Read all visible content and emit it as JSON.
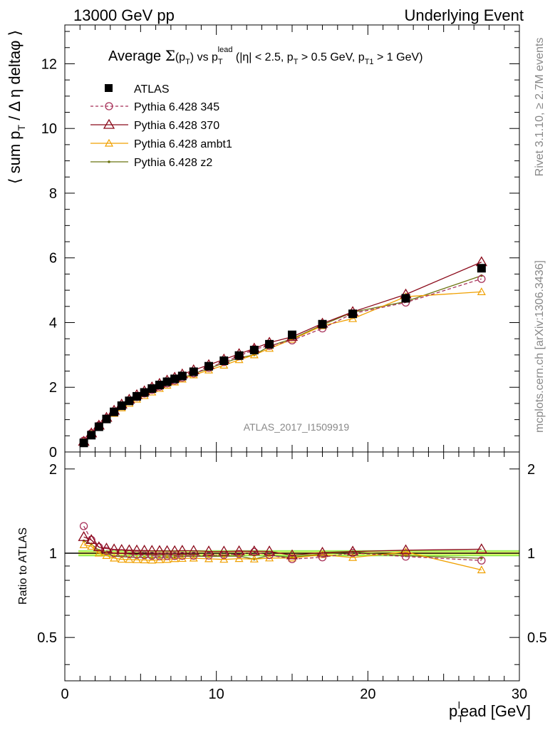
{
  "header": {
    "left": "13000 GeV pp",
    "right": "Underlying Event"
  },
  "side": {
    "rivet": "Rivet 3.1.10, ≥ 2.7M events",
    "mcplots": "mcplots.cern.ch [arXiv:1306.3436]"
  },
  "watermark": "ATLAS_2017_I1509919",
  "colors": {
    "atlas": "#000000",
    "p345": "#a8325a",
    "p370": "#8b0a1a",
    "ambt1": "#f0a000",
    "z2": "#6b7310",
    "band_inner": "#ffff77",
    "band_outer": "#99ee55"
  },
  "chart_data": {
    "type": "line",
    "title": "Average Σ(p_T) vs p_T^lead (|η| < 2.5, p_T > 0.5 GeV, p_T1 > 1 GeV)",
    "title_parts": {
      "a": "Average ",
      "sigma": "Σ",
      "b": "(p",
      "c": "T",
      "d": ") vs p",
      "e": "T",
      "e_sup": "lead",
      "f": " (|η| < 2.5, p",
      "g": "T",
      "h": " > 0.5 GeV, p",
      "i": "T1",
      "j": " > 1 GeV)"
    },
    "ylabel": "⟨ sum p_T / Δη deltaφ ⟩",
    "ylabel_parts": {
      "a": "⟨ sum p",
      "b": "T",
      "c": " / Δ η deltaφ ⟩"
    },
    "ratio_ylabel": "Ratio to ATLAS",
    "xlabel": "p_T^lead [GeV]",
    "xlabel_parts": {
      "a": "p",
      "b": "T",
      "sup": "l",
      "c": "ead [GeV]"
    },
    "xlim": [
      0,
      30
    ],
    "ylim": [
      0,
      13.2
    ],
    "ratio_ylim": [
      0.35,
      2.3
    ],
    "x_ticks": [
      "0",
      "10",
      "20",
      "30"
    ],
    "y_ticks": [
      "0",
      "2",
      "4",
      "6",
      "8",
      "10",
      "12"
    ],
    "ratio_ticks": [
      "0.5",
      "1",
      "2"
    ],
    "legend_position": "top-left",
    "x": [
      1.25,
      1.75,
      2.25,
      2.75,
      3.25,
      3.75,
      4.25,
      4.75,
      5.25,
      5.75,
      6.25,
      6.75,
      7.25,
      7.75,
      8.5,
      9.5,
      10.5,
      11.5,
      12.5,
      13.5,
      15.0,
      17.0,
      19.0,
      22.5,
      27.5
    ],
    "series": [
      {
        "key": "atlas",
        "name": "ATLAS",
        "marker": "square",
        "values": [
          0.28,
          0.52,
          0.78,
          1.02,
          1.24,
          1.43,
          1.58,
          1.72,
          1.84,
          1.96,
          2.07,
          2.17,
          2.26,
          2.35,
          2.48,
          2.65,
          2.82,
          2.98,
          3.15,
          3.33,
          3.62,
          3.95,
          4.27,
          4.75,
          5.68
        ]
      },
      {
        "key": "p345",
        "name": "Pythia 6.428 345",
        "marker": "circle",
        "dashed": true,
        "values": [
          0.35,
          0.58,
          0.82,
          1.04,
          1.24,
          1.43,
          1.57,
          1.7,
          1.81,
          1.92,
          2.02,
          2.12,
          2.21,
          2.3,
          2.43,
          2.6,
          2.78,
          2.96,
          3.18,
          3.28,
          3.45,
          3.82,
          4.28,
          4.62,
          5.35
        ]
      },
      {
        "key": "p370",
        "name": "Pythia 6.428 370",
        "marker": "triangle",
        "values": [
          0.32,
          0.58,
          0.82,
          1.06,
          1.28,
          1.47,
          1.62,
          1.76,
          1.88,
          2.0,
          2.11,
          2.21,
          2.3,
          2.4,
          2.53,
          2.69,
          2.86,
          3.03,
          3.2,
          3.38,
          3.56,
          3.97,
          4.33,
          4.87,
          5.87
        ]
      },
      {
        "key": "ambt1",
        "name": "Pythia 6.428 ambt1",
        "marker": "triangle-small",
        "values": [
          0.3,
          0.55,
          0.78,
          1.0,
          1.19,
          1.36,
          1.5,
          1.63,
          1.74,
          1.85,
          1.96,
          2.06,
          2.16,
          2.25,
          2.38,
          2.53,
          2.68,
          2.85,
          3.0,
          3.2,
          3.48,
          3.9,
          4.12,
          4.8,
          4.95
        ]
      },
      {
        "key": "z2",
        "name": "Pythia 6.428 z2",
        "marker": "dot",
        "values": [
          0.31,
          0.56,
          0.8,
          1.02,
          1.21,
          1.39,
          1.53,
          1.66,
          1.78,
          1.89,
          2.0,
          2.1,
          2.19,
          2.29,
          2.42,
          2.58,
          2.75,
          2.91,
          3.0,
          3.27,
          3.5,
          3.93,
          4.32,
          4.65,
          5.45
        ]
      }
    ]
  }
}
